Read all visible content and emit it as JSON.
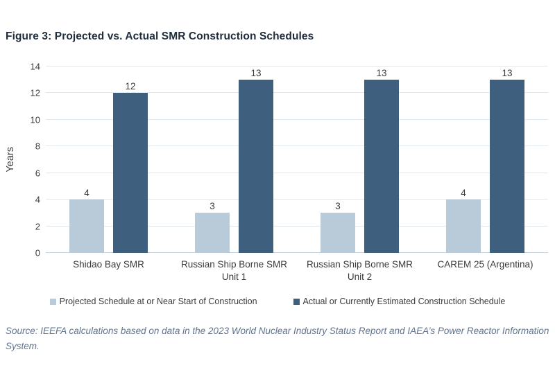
{
  "title": "Figure 3: Projected vs. Actual SMR Construction Schedules",
  "chart_data": {
    "type": "bar",
    "categories": [
      "Shidao Bay SMR",
      "Russian Ship Borne SMR\nUnit 1",
      "Russian Ship Borne SMR\nUnit 2",
      "CAREM 25 (Argentina)"
    ],
    "series": [
      {
        "name": "Projected Schedule at or Near Start of Construction",
        "color": "#b9cbd8",
        "values": [
          4,
          3,
          3,
          4
        ]
      },
      {
        "name": "Actual or Currently Estimated Construction Schedule",
        "color": "#3e5f7d",
        "values": [
          12,
          13,
          13,
          13
        ]
      }
    ],
    "xlabel": "",
    "ylabel": "Years",
    "ylim": [
      0,
      14
    ],
    "yticks": [
      0,
      2,
      4,
      6,
      8,
      10,
      12,
      14
    ],
    "grid": true,
    "legend_position": "bottom",
    "data_labels": true
  },
  "source": "Source: IEEFA calculations based on data in the 2023 World Nuclear Industry Status Report and IAEA’s Power Reactor Information System.",
  "colors": {
    "title_text": "#1e2c3c",
    "axis_text": "#3a3a3a",
    "gridline": "#e1e8ee",
    "axis_line": "#c7d1da",
    "source_text": "#5f7490",
    "series_projected": "#b9cbd8",
    "series_actual": "#3e5f7d"
  }
}
